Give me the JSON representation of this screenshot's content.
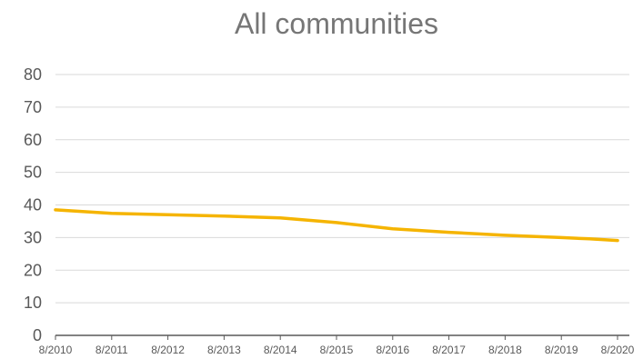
{
  "chart_data": {
    "type": "line",
    "title": "All communities",
    "xlabel": "",
    "ylabel": "",
    "ylim": [
      0,
      80
    ],
    "yticks": [
      "0",
      "10",
      "20",
      "30",
      "40",
      "50",
      "60",
      "70",
      "80"
    ],
    "x_tick_labels": [
      "8/2010",
      "8/2011",
      "8/2012",
      "8/2013",
      "8/2014",
      "8/2015",
      "8/2016",
      "8/2017",
      "8/2018",
      "8/2019",
      "8/2020"
    ],
    "grid": true,
    "legend": "none",
    "series": [
      {
        "color": "#F5B400",
        "x": [
          "8/2010",
          "8/2011",
          "8/2012",
          "8/2013",
          "8/2014",
          "8/2015",
          "8/2016",
          "8/2017",
          "8/2018",
          "8/2019",
          "2/2020",
          "8/2020"
        ],
        "values": [
          38.5,
          37.4,
          37.0,
          36.6,
          36.0,
          34.6,
          32.7,
          31.6,
          30.7,
          30.0,
          29.6,
          29.1
        ]
      }
    ]
  }
}
